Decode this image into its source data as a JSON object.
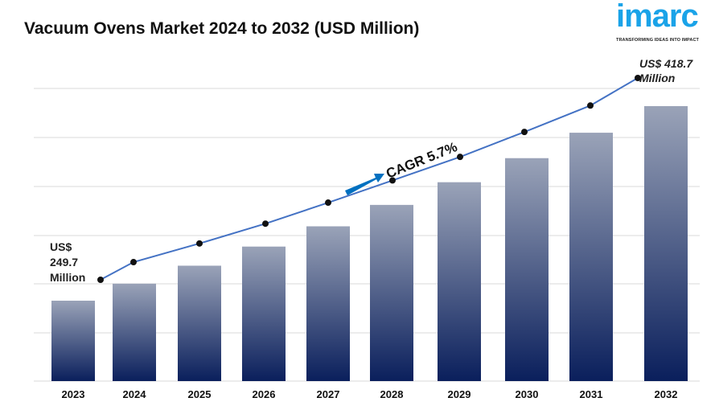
{
  "title": "Vacuum Ovens Market 2024 to 2032 (USD Million)",
  "logo": {
    "word": "imarc",
    "tagline": "TRANSFORMING IDEAS INTO IMPACT"
  },
  "chart_data": {
    "type": "bar",
    "title": "Vacuum Ovens Market 2024 to 2032 (USD Million)",
    "categories": [
      "2023",
      "2024",
      "2025",
      "2026",
      "2027",
      "2028",
      "2029",
      "2030",
      "2031",
      "2032"
    ],
    "values_note": "estimated",
    "values": [
      249.7,
      264.5,
      280.1,
      296.7,
      314.3,
      332.9,
      352.6,
      373.5,
      395.6,
      418.7
    ],
    "trend_line": true,
    "grid": true,
    "annotations": {
      "start_label": [
        "US$",
        "249.7",
        "Million"
      ],
      "end_label": [
        "US$ 418.7",
        "Million"
      ],
      "cagr": "CAGR 5.7%"
    },
    "colors": {
      "bar_top": "#9aa3b8",
      "bar_bottom": "#0a1f5c",
      "line": "#4472c4",
      "arrow": "#0070c0",
      "grid": "#d9d9d9"
    }
  }
}
